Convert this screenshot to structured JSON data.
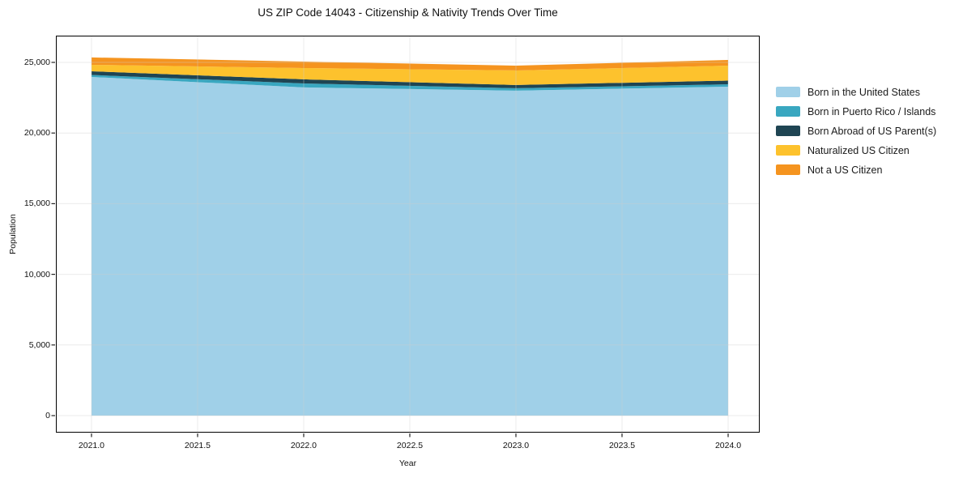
{
  "chart_data": {
    "type": "area",
    "stacked": true,
    "title": "US ZIP Code 14043 - Citizenship & Nativity Trends Over Time",
    "xlabel": "Year",
    "ylabel": "Population",
    "x": [
      2021,
      2022,
      2023,
      2024
    ],
    "series": [
      {
        "name": "Born in the United States",
        "color": "#a0d0e8",
        "values": [
          23970,
          23230,
          23000,
          23280
        ]
      },
      {
        "name": "Born in Puerto Rico / Islands",
        "color": "#39a7c0",
        "values": [
          140,
          280,
          170,
          170
        ]
      },
      {
        "name": "Born Abroad of US Parent(s)",
        "color": "#1f4553",
        "values": [
          260,
          290,
          230,
          260
        ]
      },
      {
        "name": "Naturalized US Citizen",
        "color": "#fdc22d",
        "values": [
          460,
          800,
          1030,
          1060
        ]
      },
      {
        "name": "Not a US Citizen",
        "color": "#f5941f",
        "values": [
          520,
          460,
          340,
          400
        ]
      }
    ],
    "stack_totals": [
      25350,
      25060,
      24770,
      25170
    ],
    "x_ticks": [
      2021.0,
      2021.5,
      2022.0,
      2022.5,
      2023.0,
      2023.5,
      2024.0
    ],
    "x_tick_labels": [
      "2021.0",
      "2021.5",
      "2022.0",
      "2022.5",
      "2023.0",
      "2023.5",
      "2024.0"
    ],
    "y_ticks": [
      0,
      5000,
      10000,
      15000,
      20000,
      25000
    ],
    "y_tick_labels": [
      "0",
      "5,000",
      "10,000",
      "15,000",
      "20,000",
      "25,000"
    ],
    "xlim": [
      2020.836,
      2024.145
    ],
    "ylim": [
      -1147,
      26835
    ],
    "grid": true,
    "legend_position": "right",
    "gridline_color": "#cccccc",
    "spine_color": "#000000"
  }
}
